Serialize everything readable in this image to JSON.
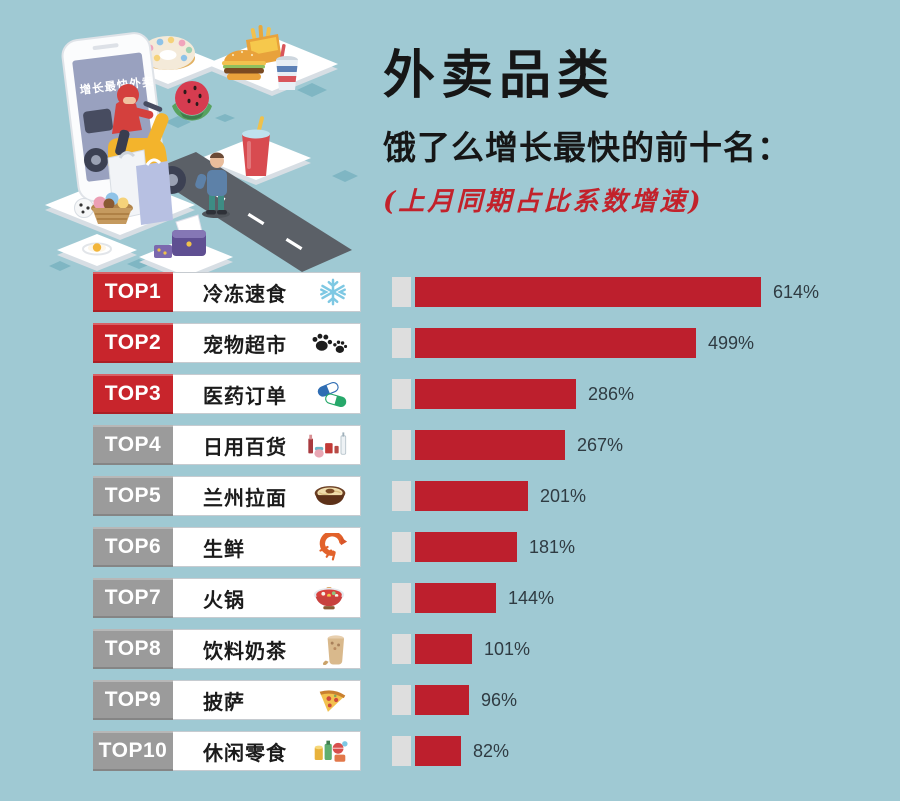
{
  "page": {
    "background_color": "#9fc9d3",
    "accent_red": "#c2222b"
  },
  "illustration": {
    "phone_screen_text": "增长最快外卖"
  },
  "chart_data": {
    "type": "bar",
    "orientation": "horizontal",
    "title": "外卖品类",
    "subtitle": "饿了么增长最快的前十名：",
    "note": "(上月同期占比系数增速)",
    "value_unit": "%",
    "value_range": [
      0,
      614
    ],
    "grid": false,
    "legend": "none",
    "bar_color": "#bd1f2d",
    "bar_base_color": "#dedede",
    "badge_colors": {
      "red": "#c8252c",
      "gray": "#9b9b9b"
    },
    "rows": [
      {
        "rank": "TOP1",
        "category": "冷冻速食",
        "icon": "snowflake-icon",
        "value": 614,
        "value_label": "614%",
        "badge_color": "red"
      },
      {
        "rank": "TOP2",
        "category": "宠物超市",
        "icon": "paw-prints-icon",
        "value": 499,
        "value_label": "499%",
        "badge_color": "red"
      },
      {
        "rank": "TOP3",
        "category": "医药订单",
        "icon": "capsule-icon",
        "value": 286,
        "value_label": "286%",
        "badge_color": "red"
      },
      {
        "rank": "TOP4",
        "category": "日用百货",
        "icon": "toiletries-icon",
        "value": 267,
        "value_label": "267%",
        "badge_color": "gray"
      },
      {
        "rank": "TOP5",
        "category": "兰州拉面",
        "icon": "noodle-bowl-icon",
        "value": 201,
        "value_label": "201%",
        "badge_color": "gray"
      },
      {
        "rank": "TOP6",
        "category": "生鲜",
        "icon": "shrimp-icon",
        "value": 181,
        "value_label": "181%",
        "badge_color": "gray"
      },
      {
        "rank": "TOP7",
        "category": "火锅",
        "icon": "hotpot-icon",
        "value": 144,
        "value_label": "144%",
        "badge_color": "gray"
      },
      {
        "rank": "TOP8",
        "category": "饮料奶茶",
        "icon": "milk-tea-icon",
        "value": 101,
        "value_label": "101%",
        "badge_color": "gray"
      },
      {
        "rank": "TOP9",
        "category": "披萨",
        "icon": "pizza-icon",
        "value": 96,
        "value_label": "96%",
        "badge_color": "gray"
      },
      {
        "rank": "TOP10",
        "category": "休闲零食",
        "icon": "snacks-icon",
        "value": 82,
        "value_label": "82%",
        "badge_color": "gray"
      }
    ]
  }
}
